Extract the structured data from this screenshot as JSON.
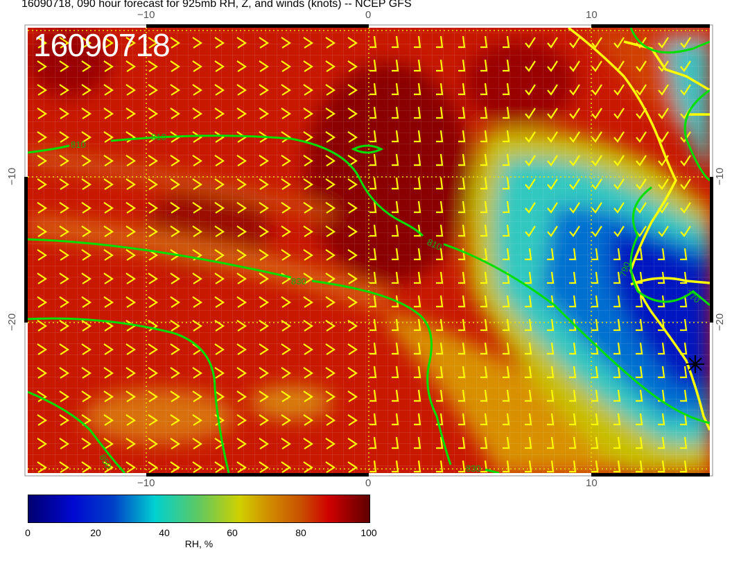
{
  "title": "16090718, 090 hour forecast for 925mb RH, Z, and winds (knots) -- NCEP GFS",
  "stamp": "16090718",
  "axes": {
    "top_ticks": [
      "−10",
      "0",
      "10"
    ],
    "bottom_ticks": [
      "−10",
      "0",
      "10"
    ],
    "left_ticks": [
      "−10",
      "−20"
    ],
    "right_ticks": [
      "−10",
      "−20"
    ]
  },
  "contour_labels": [
    "810",
    "810",
    "810",
    "830",
    "850",
    "830",
    "790",
    "770"
  ],
  "colorbar": {
    "ticks": [
      "0",
      "20",
      "40",
      "60",
      "80",
      "100"
    ],
    "label": "RH, %",
    "colors": [
      "#000070",
      "#0008d0",
      "#00d0d0",
      "#d0d000",
      "#d00000",
      "#600000"
    ]
  },
  "colors": {
    "contour": "#00e000",
    "barbs": "#ffff00",
    "coast": "#ffff00"
  }
}
